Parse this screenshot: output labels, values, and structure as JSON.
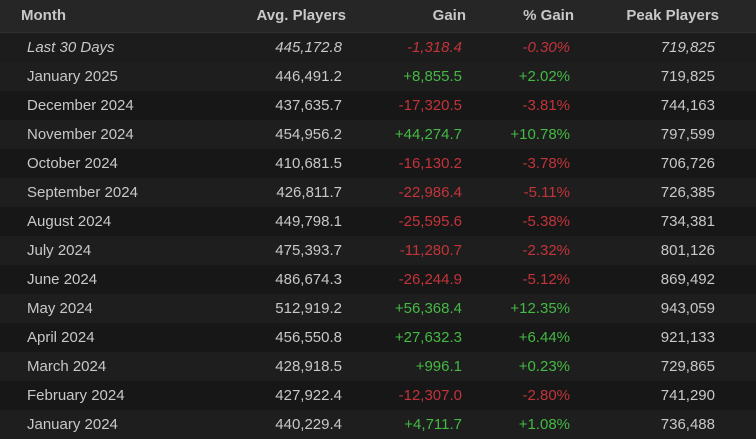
{
  "colors": {
    "background": "#1a1a1a",
    "header_background": "#262626",
    "text": "#c8c8c8",
    "positive": "#44b944",
    "negative": "#c2343a"
  },
  "table": {
    "headers": {
      "month": "Month",
      "avg_players": "Avg. Players",
      "gain": "Gain",
      "pct_gain": "% Gain",
      "peak_players": "Peak Players"
    },
    "rows": [
      {
        "month": "Last 30 Days",
        "avg": "445,172.8",
        "gain": "-1,318.4",
        "pct": "-0.30%",
        "peak": "719,825",
        "trend": "neg"
      },
      {
        "month": "January 2025",
        "avg": "446,491.2",
        "gain": "+8,855.5",
        "pct": "+2.02%",
        "peak": "719,825",
        "trend": "pos"
      },
      {
        "month": "December 2024",
        "avg": "437,635.7",
        "gain": "-17,320.5",
        "pct": "-3.81%",
        "peak": "744,163",
        "trend": "neg"
      },
      {
        "month": "November 2024",
        "avg": "454,956.2",
        "gain": "+44,274.7",
        "pct": "+10.78%",
        "peak": "797,599",
        "trend": "pos"
      },
      {
        "month": "October 2024",
        "avg": "410,681.5",
        "gain": "-16,130.2",
        "pct": "-3.78%",
        "peak": "706,726",
        "trend": "neg"
      },
      {
        "month": "September 2024",
        "avg": "426,811.7",
        "gain": "-22,986.4",
        "pct": "-5.11%",
        "peak": "726,385",
        "trend": "neg"
      },
      {
        "month": "August 2024",
        "avg": "449,798.1",
        "gain": "-25,595.6",
        "pct": "-5.38%",
        "peak": "734,381",
        "trend": "neg"
      },
      {
        "month": "July 2024",
        "avg": "475,393.7",
        "gain": "-11,280.7",
        "pct": "-2.32%",
        "peak": "801,126",
        "trend": "neg"
      },
      {
        "month": "June 2024",
        "avg": "486,674.3",
        "gain": "-26,244.9",
        "pct": "-5.12%",
        "peak": "869,492",
        "trend": "neg"
      },
      {
        "month": "May 2024",
        "avg": "512,919.2",
        "gain": "+56,368.4",
        "pct": "+12.35%",
        "peak": "943,059",
        "trend": "pos"
      },
      {
        "month": "April 2024",
        "avg": "456,550.8",
        "gain": "+27,632.3",
        "pct": "+6.44%",
        "peak": "921,133",
        "trend": "pos"
      },
      {
        "month": "March 2024",
        "avg": "428,918.5",
        "gain": "+996.1",
        "pct": "+0.23%",
        "peak": "729,865",
        "trend": "pos"
      },
      {
        "month": "February 2024",
        "avg": "427,922.4",
        "gain": "-12,307.0",
        "pct": "-2.80%",
        "peak": "741,290",
        "trend": "neg"
      },
      {
        "month": "January 2024",
        "avg": "440,229.4",
        "gain": "+4,711.7",
        "pct": "+1.08%",
        "peak": "736,488",
        "trend": "pos"
      }
    ]
  }
}
